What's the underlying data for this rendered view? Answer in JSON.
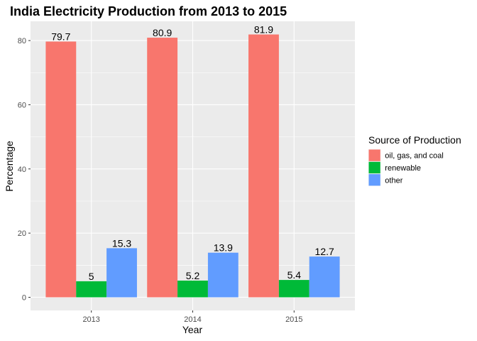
{
  "chart_data": {
    "type": "bar",
    "title": "India Electricity Production from 2013 to 2015",
    "xlabel": "Year",
    "ylabel": "Percentage",
    "categories": [
      "2013",
      "2014",
      "2015"
    ],
    "series": [
      {
        "name": "oil, gas, and coal",
        "color": "#F8766D",
        "values": [
          79.7,
          80.9,
          81.9
        ],
        "labels": [
          "79.7",
          "80.9",
          "81.9"
        ]
      },
      {
        "name": "renewable",
        "color": "#00BA38",
        "values": [
          5,
          5.2,
          5.4
        ],
        "labels": [
          "5",
          "5.2",
          "5.4"
        ]
      },
      {
        "name": "other",
        "color": "#619CFF",
        "values": [
          15.3,
          13.9,
          12.7
        ],
        "labels": [
          "15.3",
          "13.9",
          "12.7"
        ]
      }
    ],
    "yticks": [
      0,
      20,
      40,
      60,
      80
    ],
    "ytick_labels": [
      "0",
      "20",
      "40",
      "60",
      "80"
    ],
    "ylim": [
      -4.1,
      86.0
    ],
    "legend_title": "Source of Production",
    "legend_position": "right",
    "grid": true,
    "panel_background": "#EBEBEB",
    "grid_color": "#FFFFFF"
  }
}
